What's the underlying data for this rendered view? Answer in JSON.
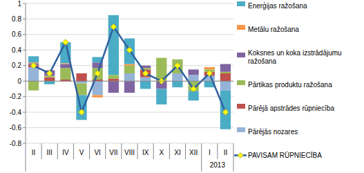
{
  "chart_data": {
    "type": "bar",
    "stacked": true,
    "grid": true,
    "legend": "right",
    "categories": [
      "II",
      "III",
      "IV",
      "V",
      "VI",
      "VII",
      "VIII",
      "IX",
      "X",
      "XI",
      "XII",
      "I",
      "II"
    ],
    "annotations": [
      "2013"
    ],
    "ylim": [
      -0.8,
      1
    ],
    "yticks": [
      -0.8,
      -0.6,
      -0.4,
      -0.2,
      0,
      0.2,
      0.4,
      0.6,
      0.8,
      1
    ],
    "series": [
      {
        "name": "Enerģijas ražošana",
        "type": "bar",
        "color": "#4bacc6",
        "values": [
          0.08,
          -0.04,
          0.27,
          -0.32,
          0.07,
          0.77,
          0.33,
          -0.1,
          -0.2,
          -0.08,
          -0.12,
          -0.08,
          -0.5
        ]
      },
      {
        "name": "Metālu ražošana",
        "type": "bar",
        "color": "#f79646",
        "values": [
          0.01,
          0,
          0.01,
          0,
          -0.03,
          0,
          0.02,
          0,
          0,
          0,
          0,
          0.03,
          0
        ]
      },
      {
        "name": "Koksnes un koka izstrādājumu ražošana",
        "type": "bar",
        "color": "#8064a2",
        "values": [
          0.02,
          0.07,
          0.05,
          0,
          0.07,
          -0.15,
          -0.15,
          0.03,
          -0.1,
          0,
          0.07,
          0,
          0.1
        ]
      },
      {
        "name": "Pārtikas produktu ražošana",
        "type": "bar",
        "color": "#9bbb59",
        "values": [
          -0.12,
          0.02,
          0.15,
          -0.15,
          0.15,
          0.05,
          0.1,
          0.02,
          0.3,
          0.18,
          -0.13,
          0.03,
          0.02
        ]
      },
      {
        "name": "Pārējā apstrādes rūpniecība",
        "type": "bar",
        "color": "#c0504d",
        "values": [
          0.03,
          0.05,
          0.02,
          0.1,
          0.02,
          0.03,
          0,
          0.1,
          0,
          0,
          0,
          0.05,
          0.1
        ]
      },
      {
        "name": "Pārējās nozares",
        "type": "bar",
        "color": "#95b3d7",
        "values": [
          0.18,
          0,
          0,
          -0.03,
          -0.18,
          0,
          0.1,
          0.05,
          0,
          0.1,
          0.08,
          0.07,
          -0.12
        ]
      },
      {
        "name": "PAVISAM RŪPNIECĪBA",
        "type": "line",
        "color": "#2f5f9e",
        "marker": "diamond",
        "values": [
          0.2,
          0.1,
          0.5,
          -0.4,
          0.1,
          0.7,
          0.4,
          0.1,
          0,
          0.2,
          -0.1,
          0.1,
          -0.4
        ]
      }
    ]
  }
}
